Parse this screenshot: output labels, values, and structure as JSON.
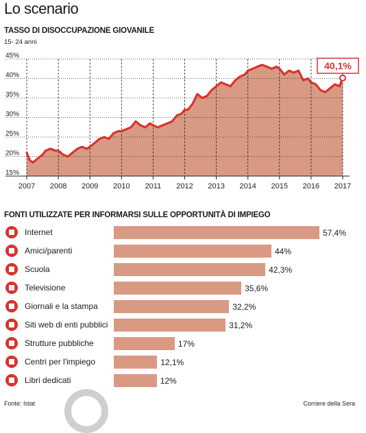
{
  "header": {
    "title": "Lo scenario"
  },
  "chart_data": [
    {
      "type": "area",
      "title": "TASSO DI DISOCCUPAZIONE GIOVANILE",
      "subtitle": "15- 24 anni",
      "xlabel": "",
      "ylabel": "",
      "x_ticks": [
        "2007",
        "2008",
        "2009",
        "2010",
        "2011",
        "2012",
        "2013",
        "2014",
        "2015",
        "2016",
        "2017"
      ],
      "y_ticks": [
        "15%",
        "20%",
        "25%",
        "30%",
        "35%",
        "40%",
        "45%"
      ],
      "xlim": [
        2007,
        2017
      ],
      "ylim": [
        15,
        45
      ],
      "grid": "vertical",
      "colors": {
        "line": "#d9332e",
        "area": "#d99a84",
        "grid": "#222222"
      },
      "callout": "40,1%",
      "series": [
        {
          "x": [
            2007.0,
            2007.1,
            2007.2,
            2007.35,
            2007.5,
            2007.6,
            2007.75,
            2007.9,
            2008.0,
            2008.15,
            2008.3,
            2008.45,
            2008.6,
            2008.75,
            2008.9,
            2009.0,
            2009.15,
            2009.3,
            2009.45,
            2009.6,
            2009.75,
            2009.9,
            2010.0,
            2010.15,
            2010.3,
            2010.45,
            2010.6,
            2010.75,
            2010.9,
            2011.0,
            2011.15,
            2011.3,
            2011.45,
            2011.6,
            2011.75,
            2011.9,
            2012.0,
            2012.1,
            2012.25,
            2012.4,
            2012.55,
            2012.7,
            2012.85,
            2013.0,
            2013.15,
            2013.3,
            2013.45,
            2013.6,
            2013.75,
            2013.9,
            2014.0,
            2014.15,
            2014.3,
            2014.45,
            2014.6,
            2014.75,
            2014.9,
            2015.0,
            2015.15,
            2015.3,
            2015.45,
            2015.6,
            2015.75,
            2015.9,
            2016.0,
            2016.15,
            2016.3,
            2016.45,
            2016.6,
            2016.75,
            2016.9,
            2017.0
          ],
          "values": [
            21.0,
            19.0,
            18.5,
            19.5,
            20.5,
            21.5,
            22.0,
            21.5,
            21.5,
            20.5,
            20.0,
            21.0,
            22.0,
            22.5,
            22.0,
            22.5,
            23.5,
            24.5,
            25.0,
            24.5,
            26.0,
            26.5,
            26.5,
            27.0,
            27.5,
            29.0,
            28.0,
            27.5,
            28.5,
            28.0,
            27.5,
            28.0,
            28.5,
            29.0,
            30.5,
            31.0,
            32.0,
            32.0,
            33.5,
            36.0,
            35.0,
            35.5,
            37.0,
            38.0,
            39.0,
            38.5,
            38.0,
            39.5,
            40.5,
            41.0,
            42.0,
            42.5,
            43.0,
            43.5,
            43.0,
            42.5,
            43.0,
            42.5,
            41.0,
            42.0,
            41.5,
            42.0,
            39.5,
            40.0,
            39.0,
            38.5,
            37.0,
            36.5,
            37.5,
            38.5,
            38.0,
            40.1
          ]
        }
      ]
    },
    {
      "type": "bar",
      "orientation": "horizontal",
      "title": "FONTI UTILIZZATE PER INFORMARSI SULLE OPPORTUNITÀ DI IMPIEGO",
      "categories": [
        "Internet",
        "Amici/parenti",
        "Scuola",
        "Televisione",
        "Giornali e la stampa",
        "Siti web di enti pubblici",
        "Strutture pubbliche",
        "Centri per l'impiego",
        "Libri dedicati"
      ],
      "values": [
        57.4,
        44,
        42.3,
        35.6,
        32.2,
        31.2,
        17,
        12.1,
        12
      ],
      "value_labels": [
        "57,4%",
        "44%",
        "42,3%",
        "35,6%",
        "32,2%",
        "31,2%",
        "17%",
        "12,1%",
        "12%"
      ],
      "icons": [
        "globe-icon",
        "people-icon",
        "school-icon",
        "tv-icon",
        "newspaper-icon",
        "website-icon",
        "building-icon",
        "office-icon",
        "book-icon"
      ],
      "colors": {
        "bar": "#d99a84",
        "icon": "#d9332e"
      },
      "xlim": [
        0,
        57.4
      ]
    }
  ],
  "footer": {
    "source": "Fonte: Istat",
    "publisher": "Corriere della Sera"
  }
}
